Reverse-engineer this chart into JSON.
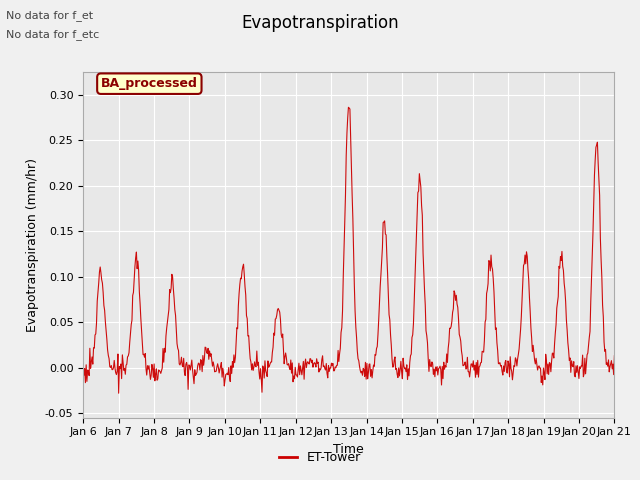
{
  "title": "Evapotranspiration",
  "xlabel": "Time",
  "ylabel": "Evapotranspiration (mm/hr)",
  "ylim": [
    -0.055,
    0.325
  ],
  "yticks": [
    -0.05,
    0.0,
    0.05,
    0.1,
    0.15,
    0.2,
    0.25,
    0.3
  ],
  "bg_color": "#f0f0f0",
  "plot_bg_color": "#e8e8e8",
  "line_color": "#cc0000",
  "text_color": "#444444",
  "annotation_text1": "No data for f_et",
  "annotation_text2": "No data for f_etc",
  "box_label": "BA_processed",
  "box_facecolor": "#ffffcc",
  "box_edgecolor": "#8b0000",
  "legend_label": "ET-Tower",
  "xticklabels": [
    "Jan 6",
    "Jan 7",
    "Jan 8",
    "Jan 9",
    "Jan 10",
    "Jan 11",
    "Jan 12",
    "Jan 13",
    "Jan 14",
    "Jan 15",
    "Jan 16",
    "Jan 17",
    "Jan 18",
    "Jan 19",
    "Jan 20",
    "Jan 21"
  ],
  "title_fontsize": 12,
  "axis_fontsize": 9,
  "tick_fontsize": 8,
  "n_days": 15,
  "n_per_day": 48,
  "day_peaks": [
    0.11,
    0.12,
    0.095,
    0.02,
    0.115,
    0.065,
    0.005,
    0.29,
    0.155,
    0.21,
    0.08,
    0.125,
    0.13,
    0.125,
    0.25
  ]
}
